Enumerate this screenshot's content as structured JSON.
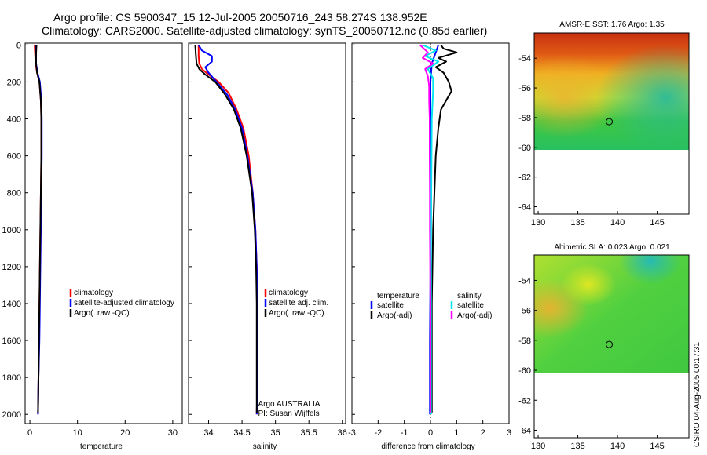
{
  "title": {
    "line1": "Argo profile: CS 5900347_15 12-Jul-2005 20050716_243 58.274S 138.952E",
    "line2": "Climatology: CARS2000. Satellite-adjusted climatology: synTS_20050712.nc (0.85d earlier)"
  },
  "credit": "CSIRO 04-Aug-2005 00:17:31",
  "chart_data": [
    {
      "type": "line",
      "id": "temperature",
      "xlabel": "temperature",
      "ylabel": "",
      "xlim": [
        -1,
        32
      ],
      "ylim": [
        2050,
        -10
      ],
      "xticks": [
        0,
        10,
        20,
        30
      ],
      "yticks": [
        0,
        200,
        400,
        600,
        800,
        1000,
        1200,
        1400,
        1600,
        1800,
        2000
      ],
      "series": [
        {
          "name": "climatology",
          "color": "#ff0000",
          "points": [
            [
              1.0,
              0
            ],
            [
              1.1,
              50
            ],
            [
              1.2,
              100
            ],
            [
              1.5,
              150
            ],
            [
              2.0,
              200
            ],
            [
              2.3,
              300
            ],
            [
              2.4,
              400
            ],
            [
              2.4,
              600
            ],
            [
              2.3,
              800
            ],
            [
              2.2,
              1000
            ],
            [
              2.1,
              1200
            ],
            [
              2.0,
              1400
            ],
            [
              1.9,
              1600
            ],
            [
              1.8,
              1800
            ],
            [
              1.7,
              2000
            ]
          ]
        },
        {
          "name": "satellite-adjusted climatology",
          "color": "#0000ff",
          "points": [
            [
              1.3,
              0
            ],
            [
              1.3,
              50
            ],
            [
              1.3,
              100
            ],
            [
              1.6,
              150
            ],
            [
              2.1,
              200
            ],
            [
              2.4,
              300
            ],
            [
              2.5,
              400
            ],
            [
              2.5,
              600
            ],
            [
              2.4,
              800
            ],
            [
              2.3,
              1000
            ],
            [
              2.2,
              1200
            ],
            [
              2.1,
              1400
            ],
            [
              2.0,
              1600
            ],
            [
              1.8,
              1800
            ],
            [
              1.7,
              2000
            ]
          ]
        },
        {
          "name": "Argo(..raw -QC)",
          "color": "#000000",
          "points": [
            [
              1.4,
              0
            ],
            [
              1.3,
              50
            ],
            [
              1.3,
              100
            ],
            [
              1.5,
              150
            ],
            [
              2.0,
              200
            ],
            [
              2.3,
              300
            ],
            [
              2.4,
              400
            ],
            [
              2.4,
              600
            ],
            [
              2.3,
              800
            ],
            [
              2.2,
              1000
            ],
            [
              2.1,
              1200
            ],
            [
              2.0,
              1400
            ],
            [
              1.9,
              1600
            ],
            [
              1.8,
              1800
            ],
            [
              1.7,
              1990
            ]
          ]
        }
      ],
      "legend": [
        "climatology",
        "satellite-adjusted climatology",
        "Argo(..raw -QC)"
      ]
    },
    {
      "type": "line",
      "id": "salinity",
      "xlabel": "salinity",
      "ylabel": "",
      "xlim": [
        33.7,
        36.05
      ],
      "ylim": [
        2050,
        -10
      ],
      "xticks": [
        34,
        34.5,
        35,
        35.5,
        36
      ],
      "yticks": [
        0,
        200,
        400,
        600,
        800,
        1000,
        1200,
        1400,
        1600,
        1800,
        2000
      ],
      "series": [
        {
          "name": "climatology",
          "color": "#ff0000",
          "points": [
            [
              33.85,
              0
            ],
            [
              33.85,
              60
            ],
            [
              33.86,
              100
            ],
            [
              33.9,
              130
            ],
            [
              34.0,
              160
            ],
            [
              34.15,
              200
            ],
            [
              34.3,
              260
            ],
            [
              34.42,
              350
            ],
            [
              34.52,
              450
            ],
            [
              34.6,
              600
            ],
            [
              34.66,
              800
            ],
            [
              34.7,
              1000
            ],
            [
              34.72,
              1200
            ],
            [
              34.73,
              1400
            ],
            [
              34.73,
              1600
            ],
            [
              34.73,
              1800
            ],
            [
              34.72,
              2000
            ]
          ]
        },
        {
          "name": "satellite adj. clim.",
          "color": "#0000ff",
          "points": [
            [
              33.85,
              0
            ],
            [
              33.9,
              30
            ],
            [
              34.05,
              60
            ],
            [
              34.05,
              90
            ],
            [
              33.95,
              120
            ],
            [
              34.0,
              150
            ],
            [
              34.12,
              200
            ],
            [
              34.28,
              270
            ],
            [
              34.4,
              350
            ],
            [
              34.5,
              450
            ],
            [
              34.58,
              600
            ],
            [
              34.66,
              800
            ],
            [
              34.7,
              1000
            ],
            [
              34.72,
              1200
            ],
            [
              34.73,
              1400
            ],
            [
              34.73,
              1600
            ],
            [
              34.73,
              1800
            ],
            [
              34.72,
              2000
            ]
          ]
        },
        {
          "name": "Argo(..raw -QC)",
          "color": "#000000",
          "points": [
            [
              33.8,
              0
            ],
            [
              33.81,
              60
            ],
            [
              33.82,
              100
            ],
            [
              33.86,
              130
            ],
            [
              33.95,
              160
            ],
            [
              34.1,
              200
            ],
            [
              34.25,
              270
            ],
            [
              34.38,
              350
            ],
            [
              34.48,
              450
            ],
            [
              34.57,
              600
            ],
            [
              34.65,
              800
            ],
            [
              34.69,
              1000
            ],
            [
              34.71,
              1200
            ],
            [
              34.72,
              1400
            ],
            [
              34.72,
              1600
            ],
            [
              34.72,
              1800
            ],
            [
              34.72,
              1990
            ]
          ]
        }
      ],
      "legend": [
        "climatology",
        "satellite adj. clim.",
        "Argo(..raw -QC)"
      ],
      "annotation": [
        "Argo AUSTRALIA",
        "PI: Susan Wijffels"
      ]
    },
    {
      "type": "line",
      "id": "difference",
      "xlabel": "difference from climatology",
      "ylabel": "",
      "xlim": [
        -3,
        3
      ],
      "ylim": [
        2050,
        -10
      ],
      "xticks": [
        -3,
        -2,
        -1,
        0,
        1,
        2,
        3
      ],
      "yticks": [
        0,
        200,
        400,
        600,
        800,
        1000,
        1200,
        1400,
        1600,
        1800,
        2000
      ],
      "series": [
        {
          "name": "temperature satellite",
          "color": "#0000ff",
          "points": [
            [
              0.3,
              0
            ],
            [
              0.2,
              40
            ],
            [
              0.05,
              100
            ],
            [
              0.0,
              200
            ],
            [
              0.0,
              400
            ],
            [
              0.0,
              800
            ],
            [
              0.0,
              1200
            ],
            [
              -0.02,
              1600
            ],
            [
              -0.02,
              2000
            ]
          ]
        },
        {
          "name": "temperature Argo(-adj)",
          "color": "#000000",
          "points": [
            [
              0.4,
              0
            ],
            [
              0.5,
              20
            ],
            [
              1.0,
              40
            ],
            [
              0.3,
              70
            ],
            [
              0.6,
              90
            ],
            [
              0.2,
              120
            ],
            [
              0.5,
              150
            ],
            [
              0.7,
              200
            ],
            [
              0.8,
              250
            ],
            [
              0.6,
              300
            ],
            [
              0.4,
              350
            ],
            [
              0.3,
              450
            ],
            [
              0.2,
              600
            ],
            [
              0.15,
              800
            ],
            [
              0.1,
              1000
            ],
            [
              0.05,
              1400
            ],
            [
              0.05,
              1800
            ],
            [
              0.05,
              1990
            ]
          ]
        },
        {
          "name": "salinity satellite",
          "color": "#00e5ee",
          "points": [
            [
              -0.3,
              0
            ],
            [
              0.2,
              30
            ],
            [
              -0.2,
              60
            ],
            [
              0.3,
              90
            ],
            [
              -0.1,
              130
            ],
            [
              0.1,
              180
            ],
            [
              0.1,
              250
            ],
            [
              0.05,
              400
            ],
            [
              0.03,
              800
            ],
            [
              0.02,
              1200
            ],
            [
              0.02,
              1600
            ],
            [
              0.02,
              2000
            ]
          ]
        },
        {
          "name": "salinity Argo(-adj)",
          "color": "#ff00ff",
          "points": [
            [
              -0.4,
              0
            ],
            [
              -0.1,
              40
            ],
            [
              -0.3,
              70
            ],
            [
              0.1,
              100
            ],
            [
              -0.2,
              130
            ],
            [
              -0.1,
              170
            ],
            [
              -0.05,
              220
            ],
            [
              -0.05,
              300
            ],
            [
              -0.03,
              400
            ],
            [
              -0.03,
              600
            ],
            [
              -0.02,
              800
            ],
            [
              -0.02,
              1000
            ],
            [
              0.0,
              1400
            ],
            [
              0.0,
              1990
            ]
          ]
        }
      ],
      "legend_left": {
        "header": "temperature",
        "items": [
          "satellite",
          "Argo(-adj)"
        ]
      },
      "legend_right": {
        "header": "salinity",
        "items": [
          "satellite",
          "Argo(-adj)"
        ]
      }
    },
    {
      "type": "heatmap",
      "id": "sst-map",
      "title": "AMSR-E SST: 1.76 Argo: 1.35",
      "xlim": [
        129.5,
        149
      ],
      "ylim": [
        -64.5,
        -52.3
      ],
      "xticks": [
        130,
        135,
        140,
        145
      ],
      "yticks": [
        -54,
        -56,
        -58,
        -60,
        -62,
        -64
      ],
      "data_extent_lat": [
        -60,
        -52.3
      ],
      "profile_location": {
        "lon": 138.952,
        "lat": -58.274
      }
    },
    {
      "type": "heatmap",
      "id": "sla-map",
      "title": "Altimetric SLA: 0.023 Argo: 0.021",
      "xlim": [
        129.5,
        149
      ],
      "ylim": [
        -64.5,
        -52.3
      ],
      "xticks": [
        130,
        135,
        140,
        145
      ],
      "yticks": [
        -54,
        -56,
        -58,
        -60,
        -62,
        -64
      ],
      "data_extent_lat": [
        -60,
        -52.3
      ],
      "profile_location": {
        "lon": 138.952,
        "lat": -58.274
      }
    }
  ]
}
